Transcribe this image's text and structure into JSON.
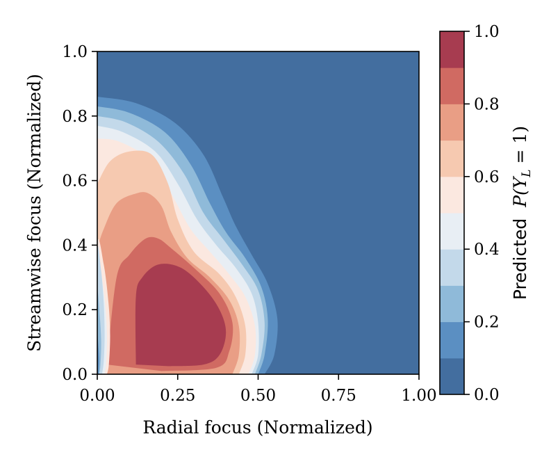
{
  "chart_data": {
    "type": "contour",
    "xlabel": "Radial focus (Normalized)",
    "ylabel": "Streamwise focus (Normalized)",
    "xlim": [
      0.0,
      1.0
    ],
    "ylim": [
      0.0,
      1.0
    ],
    "xticks": [
      "0.00",
      "0.25",
      "0.50",
      "0.75",
      "1.00"
    ],
    "yticks": [
      "0.0",
      "0.2",
      "0.4",
      "0.6",
      "0.8",
      "1.0"
    ],
    "grid": false,
    "colorbar": {
      "label_prefix": "Predicted",
      "label_math": "P(Y",
      "label_sub": "L",
      "label_suffix": " = 1)",
      "range": [
        0.0,
        1.0
      ],
      "ticks": [
        "0.0",
        "0.2",
        "0.4",
        "0.6",
        "0.8",
        "1.0"
      ],
      "levels": [
        0.0,
        0.1,
        0.2,
        0.3,
        0.4,
        0.5,
        0.6,
        0.7,
        0.8,
        0.9,
        1.0
      ],
      "colors": [
        "#436e9f",
        "#5b8fc2",
        "#8fbad9",
        "#c3d9ea",
        "#e8eef4",
        "#fbe8e0",
        "#f6c9b0",
        "#e99e85",
        "#d06a62",
        "#a73c50"
      ]
    },
    "field": {
      "description_levels": "predicted probability contours",
      "peak": {
        "x": 0.26,
        "y": 0.15,
        "value": 0.95
      },
      "level_boundaries": [
        {
          "level": 0.1,
          "points": [
            [
              0.0,
              0.86
            ],
            [
              0.12,
              0.84
            ],
            [
              0.24,
              0.78
            ],
            [
              0.33,
              0.68
            ],
            [
              0.39,
              0.55
            ],
            [
              0.43,
              0.46
            ],
            [
              0.48,
              0.37
            ],
            [
              0.53,
              0.28
            ],
            [
              0.56,
              0.17
            ],
            [
              0.55,
              0.06
            ],
            [
              0.52,
              0.0
            ]
          ]
        },
        {
          "level": 0.2,
          "points": [
            [
              0.0,
              0.83
            ],
            [
              0.1,
              0.81
            ],
            [
              0.21,
              0.75
            ],
            [
              0.29,
              0.65
            ],
            [
              0.35,
              0.53
            ],
            [
              0.4,
              0.44
            ],
            [
              0.46,
              0.36
            ],
            [
              0.51,
              0.27
            ],
            [
              0.53,
              0.17
            ],
            [
              0.52,
              0.06
            ],
            [
              0.5,
              0.0
            ]
          ]
        },
        {
          "level": 0.3,
          "points": [
            [
              0.0,
              0.8
            ],
            [
              0.09,
              0.78
            ],
            [
              0.19,
              0.72
            ],
            [
              0.27,
              0.62
            ],
            [
              0.33,
              0.5
            ],
            [
              0.39,
              0.42
            ],
            [
              0.45,
              0.34
            ],
            [
              0.5,
              0.26
            ],
            [
              0.52,
              0.16
            ],
            [
              0.51,
              0.06
            ],
            [
              0.49,
              0.0
            ]
          ]
        },
        {
          "level": 0.4,
          "points": [
            [
              0.0,
              0.77
            ],
            [
              0.08,
              0.75
            ],
            [
              0.18,
              0.69
            ],
            [
              0.25,
              0.59
            ],
            [
              0.31,
              0.48
            ],
            [
              0.37,
              0.4
            ],
            [
              0.43,
              0.33
            ],
            [
              0.48,
              0.25
            ],
            [
              0.5,
              0.16
            ],
            [
              0.5,
              0.06
            ],
            [
              0.48,
              0.0
            ]
          ]
        },
        {
          "level": 0.5,
          "points": [
            [
              0.0,
              0.73
            ],
            [
              0.07,
              0.72
            ],
            [
              0.17,
              0.66
            ],
            [
              0.23,
              0.56
            ],
            [
              0.29,
              0.45
            ],
            [
              0.35,
              0.38
            ],
            [
              0.41,
              0.31
            ],
            [
              0.46,
              0.24
            ],
            [
              0.49,
              0.15
            ],
            [
              0.49,
              0.06
            ],
            [
              0.47,
              0.0
            ]
          ]
        },
        {
          "level": 0.6,
          "points": [
            [
              0.0,
              0.59
            ],
            [
              0.04,
              0.66
            ],
            [
              0.1,
              0.69
            ],
            [
              0.17,
              0.68
            ],
            [
              0.22,
              0.59
            ],
            [
              0.25,
              0.48
            ],
            [
              0.3,
              0.38
            ],
            [
              0.38,
              0.31
            ],
            [
              0.43,
              0.24
            ],
            [
              0.46,
              0.15
            ],
            [
              0.46,
              0.06
            ],
            [
              0.44,
              0.0
            ]
          ]
        },
        {
          "level": 0.7,
          "points": [
            [
              0.0,
              0.39
            ],
            [
              0.02,
              0.45
            ],
            [
              0.06,
              0.53
            ],
            [
              0.12,
              0.56
            ],
            [
              0.16,
              0.56
            ],
            [
              0.2,
              0.52
            ],
            [
              0.23,
              0.44
            ],
            [
              0.28,
              0.36
            ],
            [
              0.35,
              0.3
            ],
            [
              0.41,
              0.23
            ],
            [
              0.44,
              0.15
            ],
            [
              0.44,
              0.06
            ],
            [
              0.42,
              0.0
            ]
          ]
        },
        {
          "level": 0.8,
          "points": [
            [
              0.03,
              0.03
            ],
            [
              0.06,
              0.3
            ],
            [
              0.1,
              0.37
            ],
            [
              0.15,
              0.42
            ],
            [
              0.19,
              0.42
            ],
            [
              0.23,
              0.39
            ],
            [
              0.3,
              0.33
            ],
            [
              0.38,
              0.25
            ],
            [
              0.42,
              0.16
            ],
            [
              0.41,
              0.07
            ],
            [
              0.37,
              0.02
            ],
            [
              0.2,
              0.01
            ]
          ]
        },
        {
          "level": 0.9,
          "points": [
            [
              0.12,
              0.03
            ],
            [
              0.12,
              0.24
            ],
            [
              0.14,
              0.3
            ],
            [
              0.19,
              0.34
            ],
            [
              0.26,
              0.33
            ],
            [
              0.33,
              0.27
            ],
            [
              0.38,
              0.2
            ],
            [
              0.4,
              0.13
            ],
            [
              0.38,
              0.06
            ],
            [
              0.33,
              0.03
            ],
            [
              0.22,
              0.025
            ]
          ]
        }
      ],
      "left_edge_low_band": {
        "level": 0.3,
        "points": [
          [
            0.0,
            0.0
          ],
          [
            0.0,
            0.38
          ],
          [
            0.012,
            0.32
          ],
          [
            0.02,
            0.22
          ],
          [
            0.023,
            0.12
          ],
          [
            0.02,
            0.04
          ],
          [
            0.015,
            0.0
          ]
        ]
      },
      "left_edge_lowest_band": {
        "level": 0.2,
        "points": [
          [
            0.0,
            0.0
          ],
          [
            0.0,
            0.25
          ],
          [
            0.008,
            0.18
          ],
          [
            0.012,
            0.1
          ],
          [
            0.01,
            0.03
          ],
          [
            0.006,
            0.0
          ]
        ]
      }
    }
  }
}
